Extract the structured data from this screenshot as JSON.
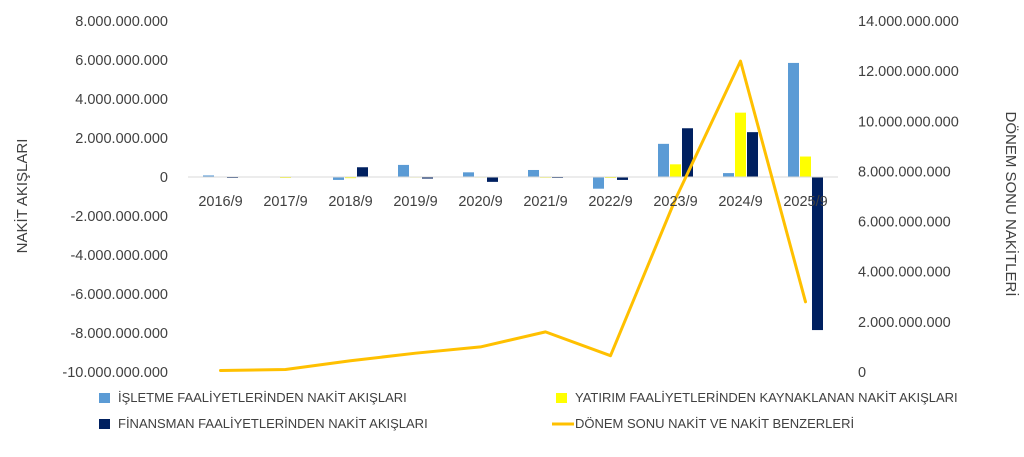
{
  "chart_data": {
    "type": "bar",
    "categories": [
      "2016/9",
      "2017/9",
      "2018/9",
      "2019/9",
      "2020/9",
      "2021/9",
      "2022/9",
      "2023/9",
      "2024/9",
      "2025/9"
    ],
    "y_left": {
      "label": "NAKİT AKIŞLARI",
      "ylim": [
        -10000000000,
        8000000000
      ],
      "ticks": [
        8000000000,
        6000000000,
        4000000000,
        2000000000,
        0,
        -2000000000,
        -4000000000,
        -6000000000,
        -8000000000,
        -10000000000
      ],
      "tick_labels": [
        "8.000.000.000",
        "6.000.000.000",
        "4.000.000.000",
        "2.000.000.000",
        "0",
        "-2.000.000.000",
        "-4.000.000.000",
        "-6.000.000.000",
        "-8.000.000.000",
        "-10.000.000.000"
      ]
    },
    "y_right": {
      "label": "DÖNEM SONU NAKİTLERİ",
      "ylim": [
        0,
        14000000000
      ],
      "ticks": [
        14000000000,
        12000000000,
        10000000000,
        8000000000,
        6000000000,
        4000000000,
        2000000000,
        0
      ],
      "tick_labels": [
        "14.000.000.000",
        "12.000.000.000",
        "10.000.000.000",
        "8.000.000.000",
        "6.000.000.000",
        "4.000.000.000",
        "2.000.000.000",
        "0"
      ]
    },
    "series": [
      {
        "name": "İŞLETME FAALİYETLERİNDEN NAKİT AKIŞLARI",
        "kind": "bar",
        "axis": "left",
        "color": "#5B9BD5",
        "values": [
          80000000,
          0,
          -150000000,
          620000000,
          240000000,
          360000000,
          -600000000,
          1700000000,
          200000000,
          5850000000
        ]
      },
      {
        "name": "YATIRIM FAALİYETLERİNDEN KAYNAKLANAN NAKİT AKIŞLARI",
        "kind": "bar",
        "axis": "left",
        "color": "#FFFF00",
        "values": [
          -20000000,
          -50000000,
          -60000000,
          -30000000,
          -30000000,
          -40000000,
          -50000000,
          650000000,
          3300000000,
          1050000000
        ]
      },
      {
        "name": "FİNANSMAN FAALİYETLERİNDEN NAKİT AKIŞLARI",
        "kind": "bar",
        "axis": "left",
        "color": "#002060",
        "values": [
          -50000000,
          -20000000,
          500000000,
          -80000000,
          -250000000,
          -50000000,
          -150000000,
          2500000000,
          2300000000,
          -7850000000
        ]
      },
      {
        "name": "DÖNEM SONU NAKİT VE NAKİT BENZERLERİ",
        "kind": "line",
        "axis": "right",
        "color": "#FFC000",
        "values": [
          60000000,
          100000000,
          450000000,
          750000000,
          1000000000,
          1600000000,
          650000000,
          6900000000,
          12400000000,
          2800000000
        ]
      }
    ],
    "grid": false,
    "legend_position": "bottom"
  }
}
